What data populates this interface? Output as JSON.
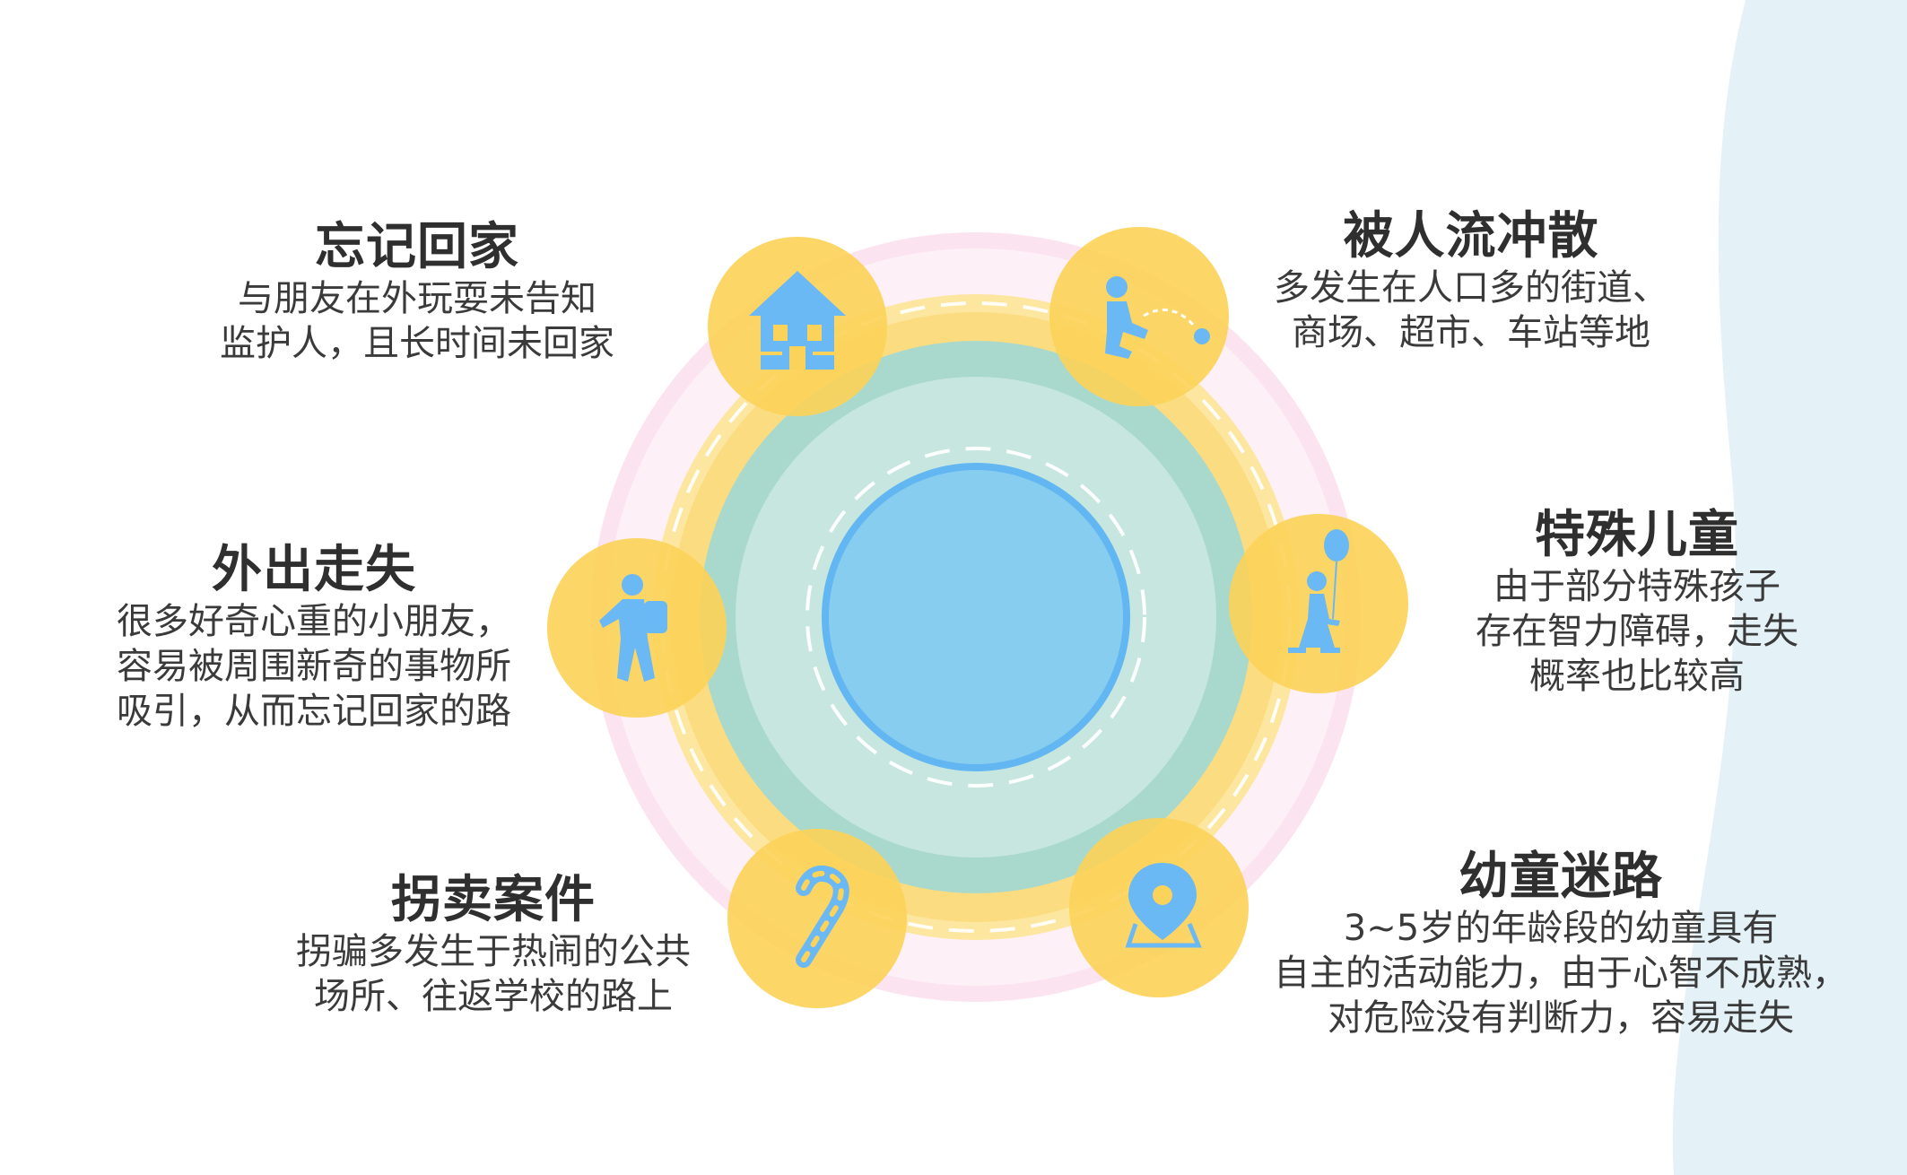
{
  "colors": {
    "background": "#ffffff",
    "wave": "#e4f2f8",
    "outer_glow": "#fde9f3",
    "yellow_ring": "#fbd96b",
    "teal_ring": "#a9d9cd",
    "inner_disc": "#c7e6e0",
    "core_blue": "#86cdef",
    "core_border": "#63b8f2",
    "bubble": "#fcd35a",
    "icon_blue": "#6ab8f4",
    "text": "#333333"
  },
  "items": [
    {
      "id": "forget-home",
      "icon": "house-icon",
      "title": "忘记回家",
      "lines": [
        "与朋友在外玩耍未告知",
        "监护人，且长时间未回家"
      ]
    },
    {
      "id": "crowd-scatter",
      "icon": "child-ball-icon",
      "title": "被人流冲散",
      "lines": [
        "多发生在人口多的街道、",
        "商场、超市、车站等地"
      ]
    },
    {
      "id": "wander-out",
      "icon": "walking-child-icon",
      "title": "外出走失",
      "lines": [
        "很多好奇心重的小朋友，",
        "容易被周围新奇的事物所",
        "吸引，从而忘记回家的路"
      ]
    },
    {
      "id": "special-children",
      "icon": "girl-balloon-icon",
      "title": "特殊儿童",
      "lines": [
        "由于部分特殊孩子",
        "存在智力障碍，走失",
        "概率也比较高"
      ]
    },
    {
      "id": "trafficking",
      "icon": "candy-cane-icon",
      "title": "拐卖案件",
      "lines": [
        "拐骗多发生于热闹的公共",
        "场所、往返学校的路上"
      ]
    },
    {
      "id": "toddler-lost",
      "icon": "location-pin-icon",
      "title": "幼童迷路",
      "lines": [
        "3~5岁的年龄段的幼童具有",
        "自主的活动能力，由于心智不成熟，",
        "对危险没有判断力，容易走失"
      ]
    }
  ]
}
